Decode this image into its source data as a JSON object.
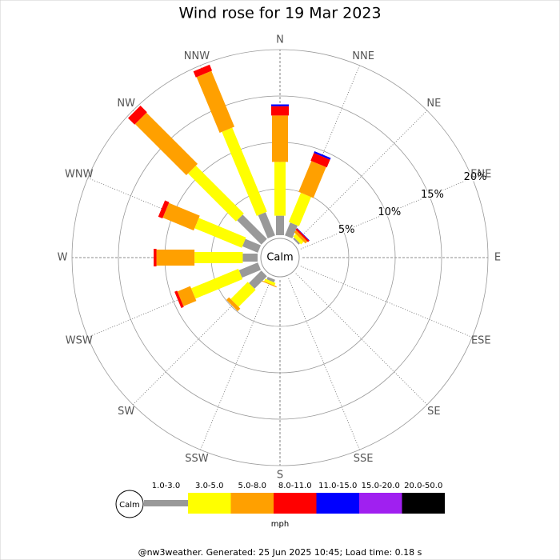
{
  "chart_data": {
    "type": "windrose",
    "title": "Wind rose for 19 Mar 2023",
    "categories": [
      "N",
      "NNE",
      "NE",
      "ENE",
      "E",
      "ESE",
      "SE",
      "SSE",
      "S",
      "SSW",
      "SW",
      "WSW",
      "W",
      "WNW",
      "NW",
      "NNW"
    ],
    "calm_label": "Calm",
    "rlim": [
      0,
      20
    ],
    "rticks": [
      {
        "value": 5,
        "label": "5%"
      },
      {
        "value": 10,
        "label": "10%"
      },
      {
        "value": 15,
        "label": "15%"
      },
      {
        "value": 20,
        "label": "20%"
      }
    ],
    "grid": true,
    "series": [
      {
        "name": "1.0-3.0",
        "color": "#999999",
        "values": [
          2.1,
          1.5,
          0.2,
          0,
          0,
          0,
          0,
          0,
          0,
          0.3,
          1.9,
          2.2,
          1.6,
          1.8,
          3.7,
          2.7
        ]
      },
      {
        "name": "3.0-5.0",
        "color": "#ffff00",
        "values": [
          5.8,
          3.4,
          0.4,
          0,
          0,
          0,
          0,
          0,
          0,
          0.3,
          2.6,
          5.5,
          5.2,
          5.5,
          7.3,
          9.8
        ]
      },
      {
        "name": "5.0-8.0",
        "color": "#ffa000",
        "values": [
          5.0,
          3.6,
          0.3,
          0,
          0,
          0,
          0,
          0,
          0,
          0.1,
          0.4,
          1.5,
          4.1,
          3.6,
          7.8,
          6.5
        ]
      },
      {
        "name": "8.0-11.0",
        "color": "#ff0000",
        "values": [
          1.0,
          0.9,
          0.2,
          0,
          0,
          0,
          0,
          0,
          0,
          0,
          0,
          0.3,
          0.3,
          0.5,
          1.0,
          0.7
        ]
      },
      {
        "name": "11.0-15.0",
        "color": "#0000ff",
        "values": [
          0.2,
          0.2,
          0.05,
          0,
          0,
          0,
          0,
          0,
          0,
          0,
          0,
          0,
          0,
          0,
          0,
          0
        ]
      },
      {
        "name": "15.0-20.0",
        "color": "#a020f0",
        "values": [
          0,
          0,
          0,
          0,
          0,
          0,
          0,
          0,
          0,
          0,
          0,
          0,
          0,
          0,
          0,
          0
        ]
      },
      {
        "name": "20.0-50.0",
        "color": "#000000",
        "values": [
          0,
          0,
          0,
          0,
          0,
          0,
          0,
          0,
          0,
          0,
          0,
          0,
          0,
          0,
          0,
          0
        ]
      }
    ],
    "unit": "mph",
    "footer": "@nw3weather. Generated: 25 Jun 2025 10:45; Load time: 0.18 s"
  }
}
